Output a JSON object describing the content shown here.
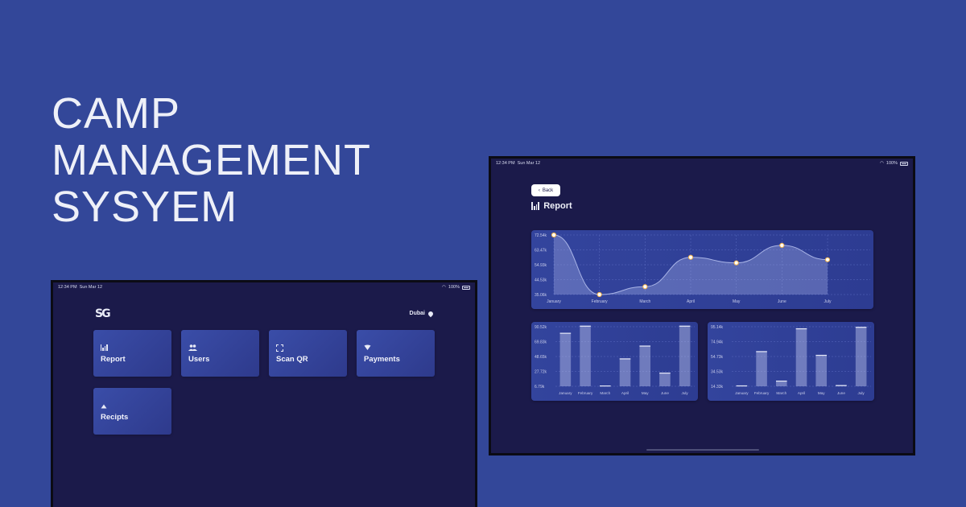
{
  "hero": {
    "line1": "CAMP",
    "line2": "MANAGEMENT",
    "line3": "SYSYEM"
  },
  "status": {
    "time": "12:34 PM",
    "date": "Sun Mar 12",
    "battery": "100%"
  },
  "dashboard": {
    "logo": "SG",
    "location": "Dubai",
    "tiles": [
      {
        "label": "Report",
        "icon": "bar-chart-icon"
      },
      {
        "label": "Users",
        "icon": "users-icon"
      },
      {
        "label": "Scan QR",
        "icon": "scan-icon"
      },
      {
        "label": "Payments",
        "icon": "heart-icon"
      },
      {
        "label": "Recipts",
        "icon": "up-arrow-icon"
      }
    ]
  },
  "report": {
    "back_label": "Back",
    "title": "Report"
  },
  "colors": {
    "background": "#334799",
    "device": "#1b1a4a",
    "card": "#33449d",
    "accent": "#f3b24a"
  },
  "chart_data": [
    {
      "type": "area",
      "categories": [
        "January",
        "February",
        "March",
        "April",
        "May",
        "June",
        "July"
      ],
      "values": [
        72.54,
        35.06,
        40.0,
        58.5,
        55.0,
        66.0,
        57.0
      ],
      "yticks": [
        "72.54k",
        "63.47k",
        "54.93k",
        "44.53k",
        "35.06k"
      ],
      "ylim": [
        35.06,
        72.54
      ],
      "grid": true
    },
    {
      "type": "bar",
      "categories": [
        "January",
        "February",
        "March",
        "April",
        "May",
        "June",
        "July"
      ],
      "values": [
        82.0,
        92.0,
        7.5,
        46.0,
        64.0,
        26.0,
        92.0
      ],
      "yticks": [
        "90.52k",
        "69.83k",
        "48.65k",
        "27.72k",
        "6.79k"
      ],
      "ylim": [
        6.79,
        90.52
      ],
      "grid": true
    },
    {
      "type": "bar",
      "categories": [
        "January",
        "February",
        "March",
        "April",
        "May",
        "June",
        "July"
      ],
      "values": [
        15.5,
        62.0,
        22.0,
        93.0,
        57.0,
        16.0,
        95.0
      ],
      "yticks": [
        "95.14k",
        "74.94k",
        "54.73k",
        "34.53k",
        "14.33k"
      ],
      "ylim": [
        14.33,
        95.14
      ],
      "grid": true
    }
  ]
}
